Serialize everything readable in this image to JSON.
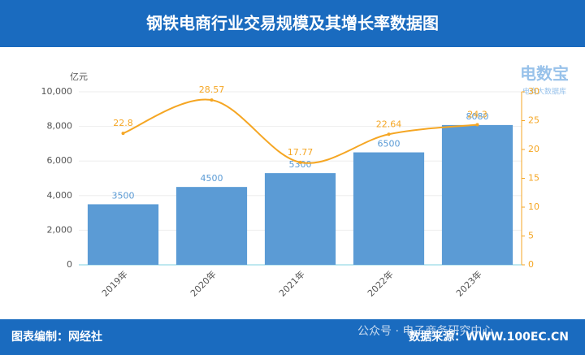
{
  "header": {
    "title": "钢铁电商行业交易规模及其增长率数据图"
  },
  "logo": {
    "name": "电数宝",
    "subtitle": "电商大数据库"
  },
  "chart_data": {
    "type": "combo",
    "y_axis_label": "亿元",
    "categories": [
      "2019年",
      "2020年",
      "2021年",
      "2022年",
      "2023年"
    ],
    "series": [
      {
        "type": "bar",
        "color": "#5b9bd5",
        "values": [
          3500,
          4500,
          5300,
          6500,
          8080
        ]
      },
      {
        "type": "line",
        "color": "#f5a623",
        "axis": "y2",
        "values": [
          22.8,
          28.57,
          17.77,
          22.64,
          24.3
        ]
      }
    ],
    "ylim": [
      0,
      10000
    ],
    "yticks": [
      0,
      {
        "value": 2000,
        "label": "2,000"
      },
      {
        "value": 4000,
        "label": "4,000"
      },
      {
        "value": 6000,
        "label": "6,000"
      },
      {
        "value": 8000,
        "label": "8,000"
      },
      {
        "value": 10000,
        "label": "10,000"
      }
    ],
    "y2lim": [
      0,
      30
    ],
    "y2ticks": [
      0,
      5,
      10,
      15,
      20,
      25,
      30
    ],
    "grid": true
  },
  "footer": {
    "credit": "图表编制：网经社",
    "watermark": "公众号 · 电子商务研究中心",
    "source": "数据来源：WWW.100EC.CN"
  }
}
